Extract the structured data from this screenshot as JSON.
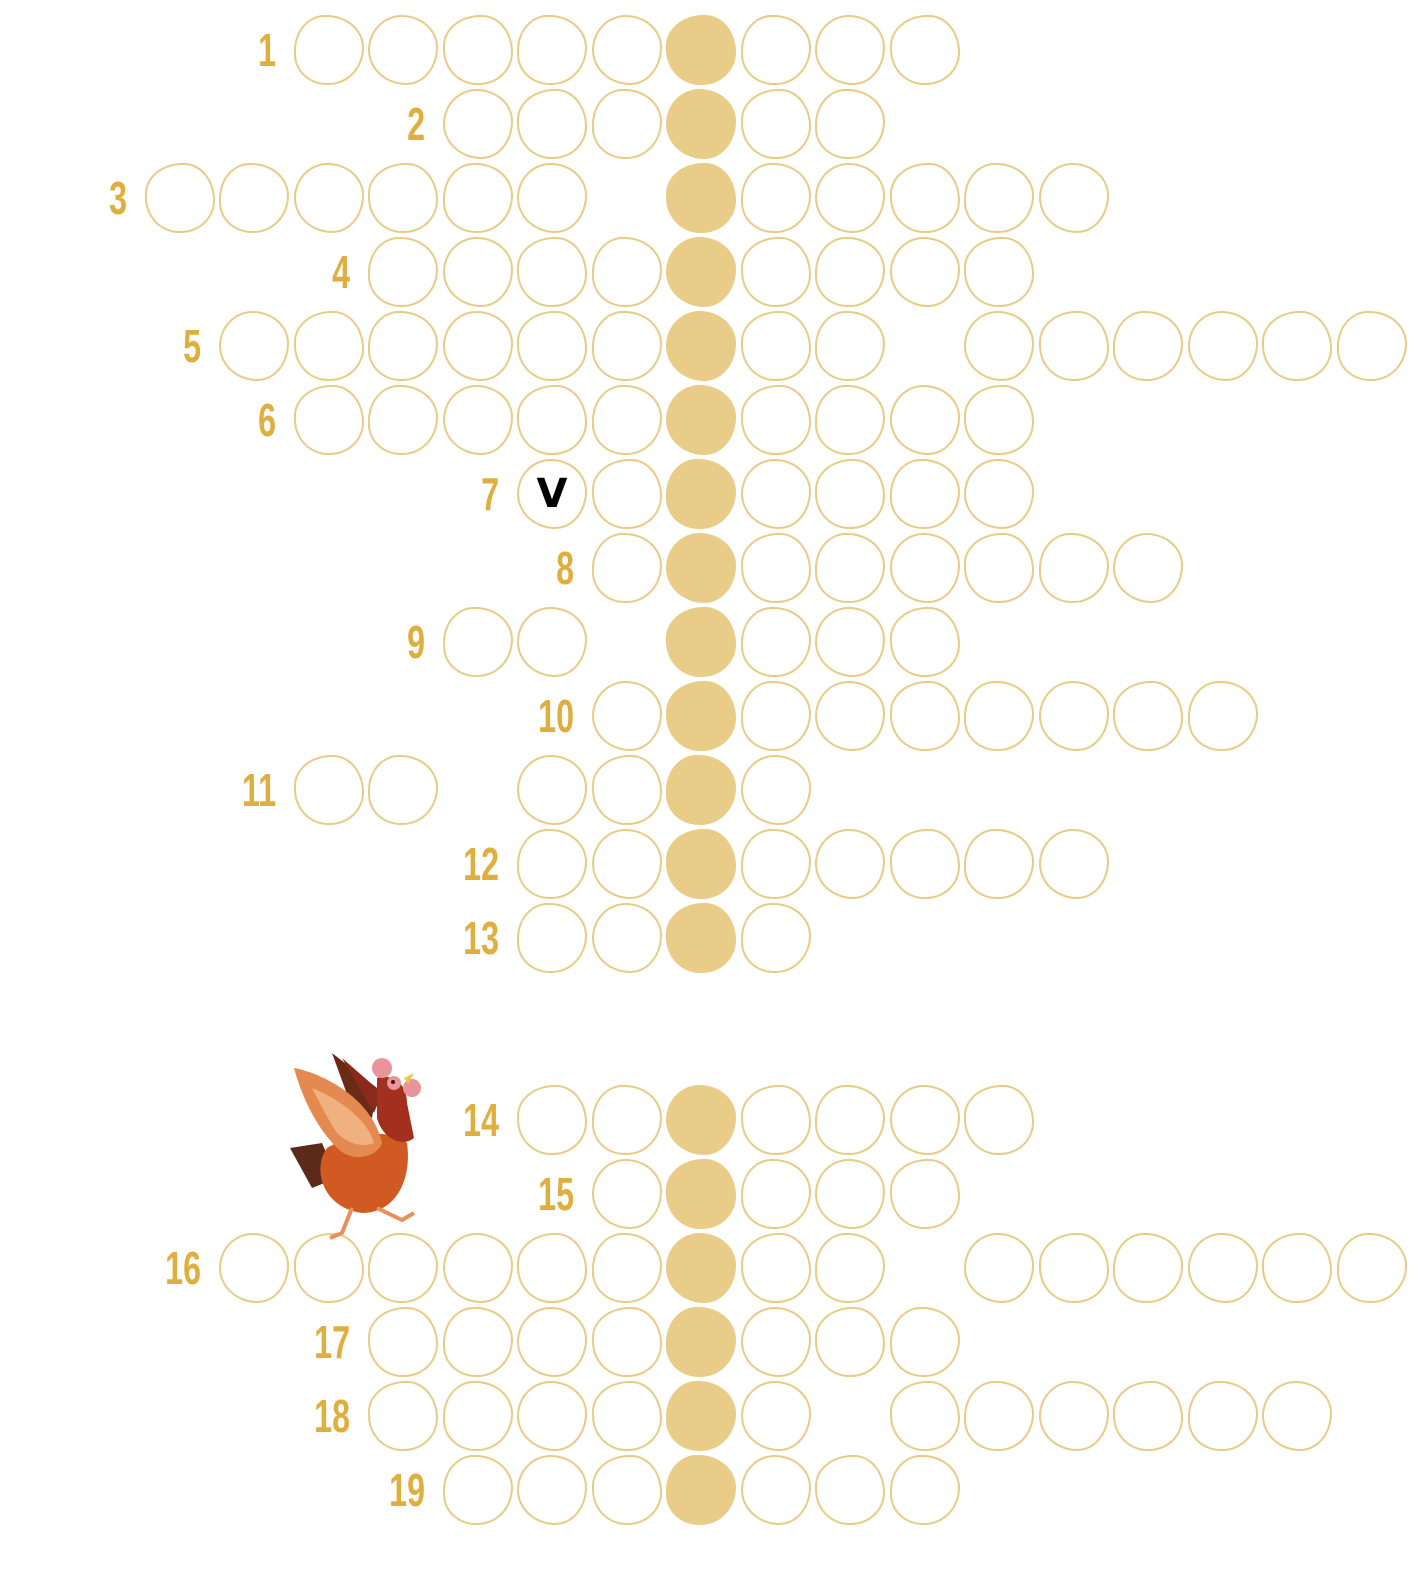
{
  "colors": {
    "outline": "#e8cb85",
    "key": "#e8cc87",
    "number": "#e0ae3e"
  },
  "legend": "Pattern: '.' empty cell, '#' highlighted solution column cell, '_' gap, other characters are filled letters",
  "rows": [
    {
      "number": "1",
      "pattern": ".....#..."
    },
    {
      "number": "2",
      "pattern": "...#.."
    },
    {
      "number": "3",
      "pattern": "......_#....."
    },
    {
      "number": "4",
      "pattern": "....#...."
    },
    {
      "number": "5",
      "pattern": "......#.._......"
    },
    {
      "number": "6",
      "pattern": ".....#...."
    },
    {
      "number": "7",
      "pattern": "V.#...."
    },
    {
      "number": "8",
      "pattern": ".#......"
    },
    {
      "number": "9",
      "pattern": ".._#..."
    },
    {
      "number": "10",
      "pattern": ".#......."
    },
    {
      "number": "11",
      "pattern": ".._..#."
    },
    {
      "number": "12",
      "pattern": "..#....."
    },
    {
      "number": "13",
      "pattern": "..#."
    },
    {
      "number": "14",
      "pattern": "..#...."
    },
    {
      "number": "15",
      "pattern": ".#..."
    },
    {
      "number": "16",
      "pattern": "......#.._......"
    },
    {
      "number": "17",
      "pattern": "....#..."
    },
    {
      "number": "18",
      "pattern": "....#._......"
    },
    {
      "number": "19",
      "pattern": "...#..."
    }
  ],
  "illustration": "hen-illustration"
}
